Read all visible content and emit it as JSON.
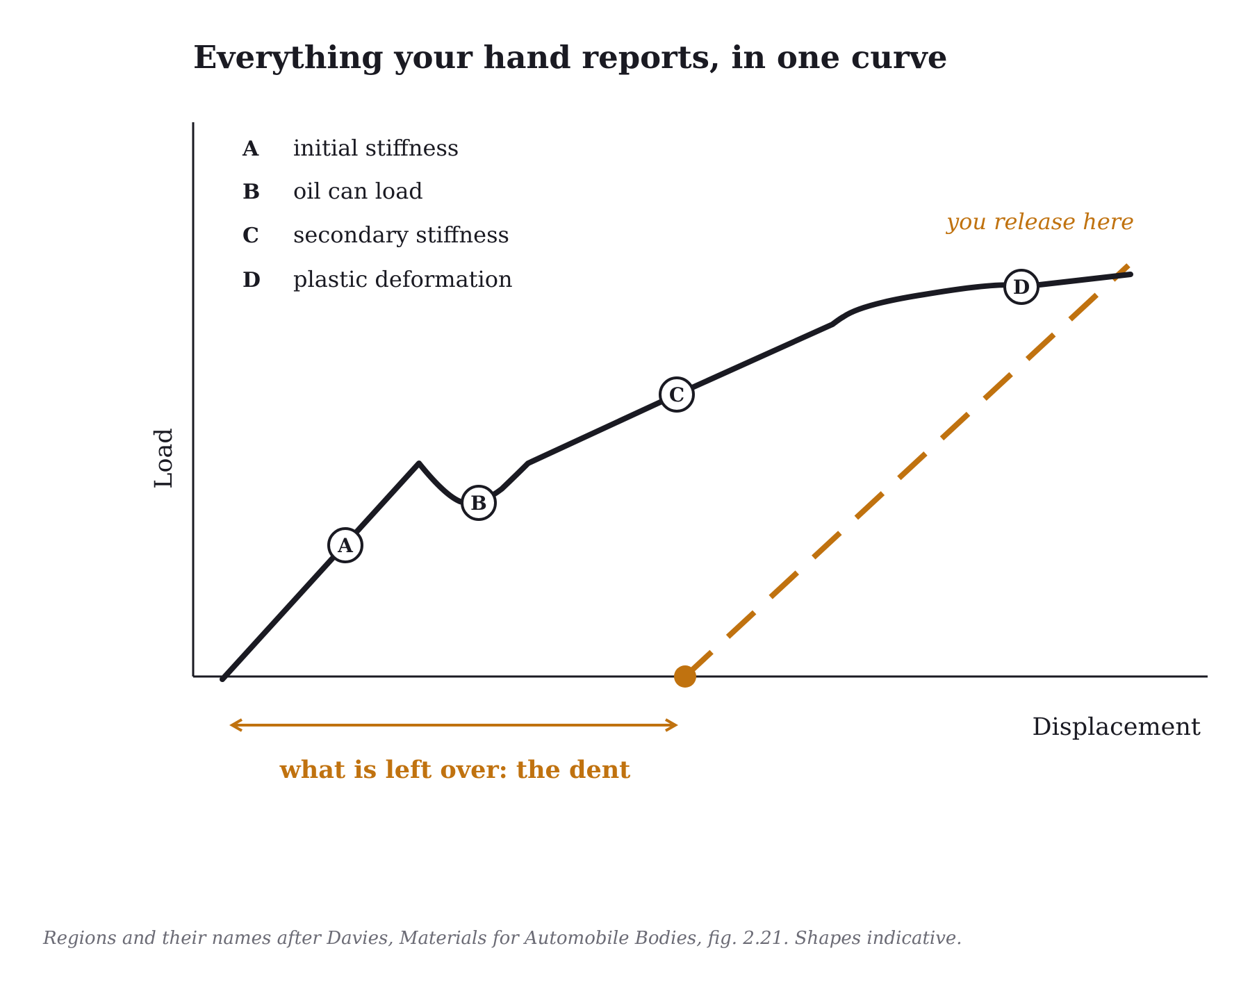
{
  "title": "Everything your hand reports, in one curve",
  "caption": "Regions and their names after Davies, Materials for Automobile Bodies, fig. 2.21. Shapes indicative.",
  "colors": {
    "ink": "#1a1a22",
    "accent": "#c0720f",
    "muted": "#6b6b75"
  },
  "axes": {
    "y_label": "Load",
    "x_label": "Displacement"
  },
  "legend": [
    {
      "letter": "A",
      "text": "initial stiffness"
    },
    {
      "letter": "B",
      "text": "oil can load"
    },
    {
      "letter": "C",
      "text": "secondary stiffness"
    },
    {
      "letter": "D",
      "text": "plastic deformation"
    }
  ],
  "markers": [
    {
      "letter": "A",
      "region": "initial stiffness"
    },
    {
      "letter": "B",
      "region": "oil can load"
    },
    {
      "letter": "C",
      "region": "secondary stiffness"
    },
    {
      "letter": "D",
      "region": "plastic deformation"
    }
  ],
  "annotations": {
    "release": "you release here",
    "dent": "what is left over: the dent"
  }
}
